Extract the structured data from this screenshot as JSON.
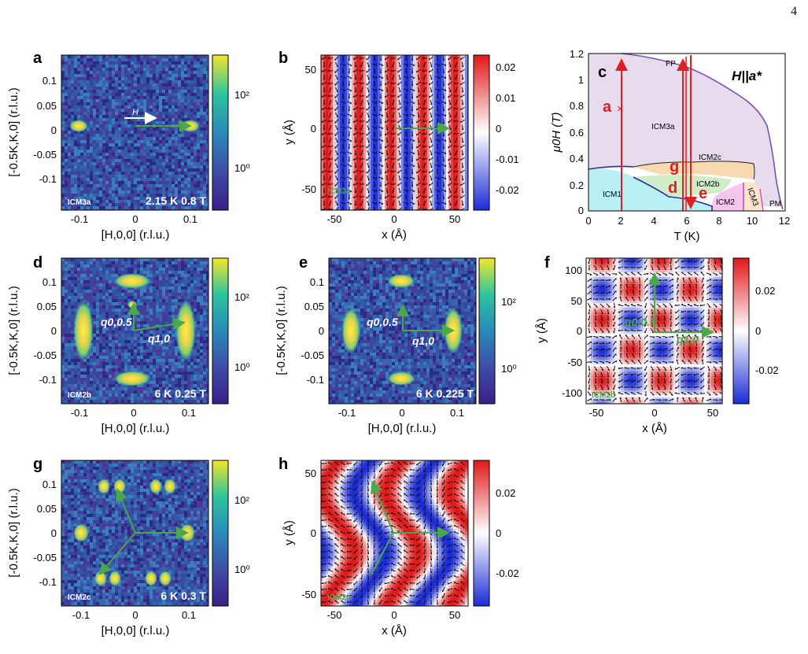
{
  "page_number": "4",
  "colors": {
    "axis": "#000000",
    "arrow_green": "#4aa84a",
    "arrow_red": "#e02020",
    "label_red": "#e02020",
    "phase_boundary": "#7b4fb0",
    "fp_region": "#e7dcee",
    "icm1_region": "#b9f0f6",
    "icm2b_region": "#cfeec7",
    "icm2c_region": "#f9d9b2",
    "icm2_region": "#f7c6ef",
    "icm3_region": "#fbe3cc"
  },
  "panels": {
    "a": {
      "letter": "a",
      "tag": "ICM3a",
      "cond": "2.15 K 0.8 T",
      "arrow": "H",
      "xticks": [
        "-0.1",
        "0",
        "0.1"
      ],
      "yticks": [
        "0.1",
        "0.05",
        "0",
        "-0.05",
        "-0.1"
      ],
      "xlabel": "[H,0,0] (r.l.u.)",
      "ylabel": "[-0.5K,K,0] (r.l.u.)",
      "cbticks": [
        "10²",
        "10⁰"
      ]
    },
    "b": {
      "letter": "b",
      "tag": "ICM3a",
      "xticks": [
        "-50",
        "0",
        "50"
      ],
      "yticks": [
        "50",
        "0",
        "-50"
      ],
      "xlabel": "x (Å)",
      "ylabel": "y (Å)",
      "cbticks": [
        "0.02",
        "0.01",
        "0",
        "-0.01",
        "-0.02"
      ]
    },
    "c": {
      "letter": "c",
      "title": "H||a*",
      "xticks": [
        "0",
        "2",
        "4",
        "6",
        "8",
        "10",
        "12"
      ],
      "yticks": [
        "1.2",
        "1",
        "0.8",
        "0.6",
        "0.4",
        "0.2",
        "0"
      ],
      "xlabel": "T (K)",
      "ylabel": "μ0H (T)",
      "regions": [
        "FP",
        "ICM3a",
        "ICM2c",
        "ICM2b",
        "ICM1",
        "ICM2",
        "ICM3",
        "PM"
      ],
      "markers": [
        "a",
        "g",
        "d",
        "e"
      ]
    },
    "d": {
      "letter": "d",
      "tag": "ICM2b",
      "cond": "6 K 0.25 T",
      "q1": "q0,0.5",
      "q2": "q1,0",
      "xticks": [
        "-0.1",
        "0",
        "0.1"
      ],
      "yticks": [
        "0.1",
        "0.05",
        "0",
        "-0.05",
        "-0.1"
      ],
      "xlabel": "[H,0,0] (r.l.u.)",
      "ylabel": "[-0.5K,K,0] (r.l.u.)",
      "cbticks": [
        "10²",
        "10⁰"
      ]
    },
    "e": {
      "letter": "e",
      "cond": "6 K 0.225 T",
      "q1": "q0,0.5",
      "q2": "q1,0",
      "xticks": [
        "-0.1",
        "0",
        "0.1"
      ],
      "yticks": [
        "0.1",
        "0.05",
        "0",
        "-0.05",
        "-0.1"
      ],
      "xlabel": "[H,0,0] (r.l.u.)",
      "ylabel": "[-0.5K,K,0] (r.l.u.)",
      "cbticks": [
        "10²",
        "10⁰"
      ]
    },
    "f": {
      "letter": "f",
      "tag": "ICM2b",
      "q1": "q0,0.5",
      "q2": "q1,0",
      "xticks": [
        "-50",
        "0",
        "50"
      ],
      "yticks": [
        "100",
        "50",
        "0",
        "-50",
        "-100"
      ],
      "xlabel": "x (Å)",
      "ylabel": "y (Å)",
      "cbticks": [
        "0.02",
        "0",
        "-0.02"
      ]
    },
    "g": {
      "letter": "g",
      "tag": "ICM2c",
      "cond": "6 K 0.3 T",
      "xticks": [
        "-0.1",
        "0",
        "0.1"
      ],
      "yticks": [
        "0.1",
        "0.05",
        "0",
        "-0.05",
        "-0.1"
      ],
      "xlabel": "[H,0,0] (r.l.u.)",
      "ylabel": "[-0.5K,K,0] (r.l.u.)",
      "cbticks": [
        "10²",
        "10⁰"
      ]
    },
    "h": {
      "letter": "h",
      "tag": "ICM2c",
      "xticks": [
        "-50",
        "0",
        "50"
      ],
      "yticks": [
        "50",
        "0",
        "-50"
      ],
      "xlabel": "x (Å)",
      "ylabel": "y (Å)",
      "cbticks": [
        "0.02",
        "0",
        "-0.02"
      ]
    }
  }
}
